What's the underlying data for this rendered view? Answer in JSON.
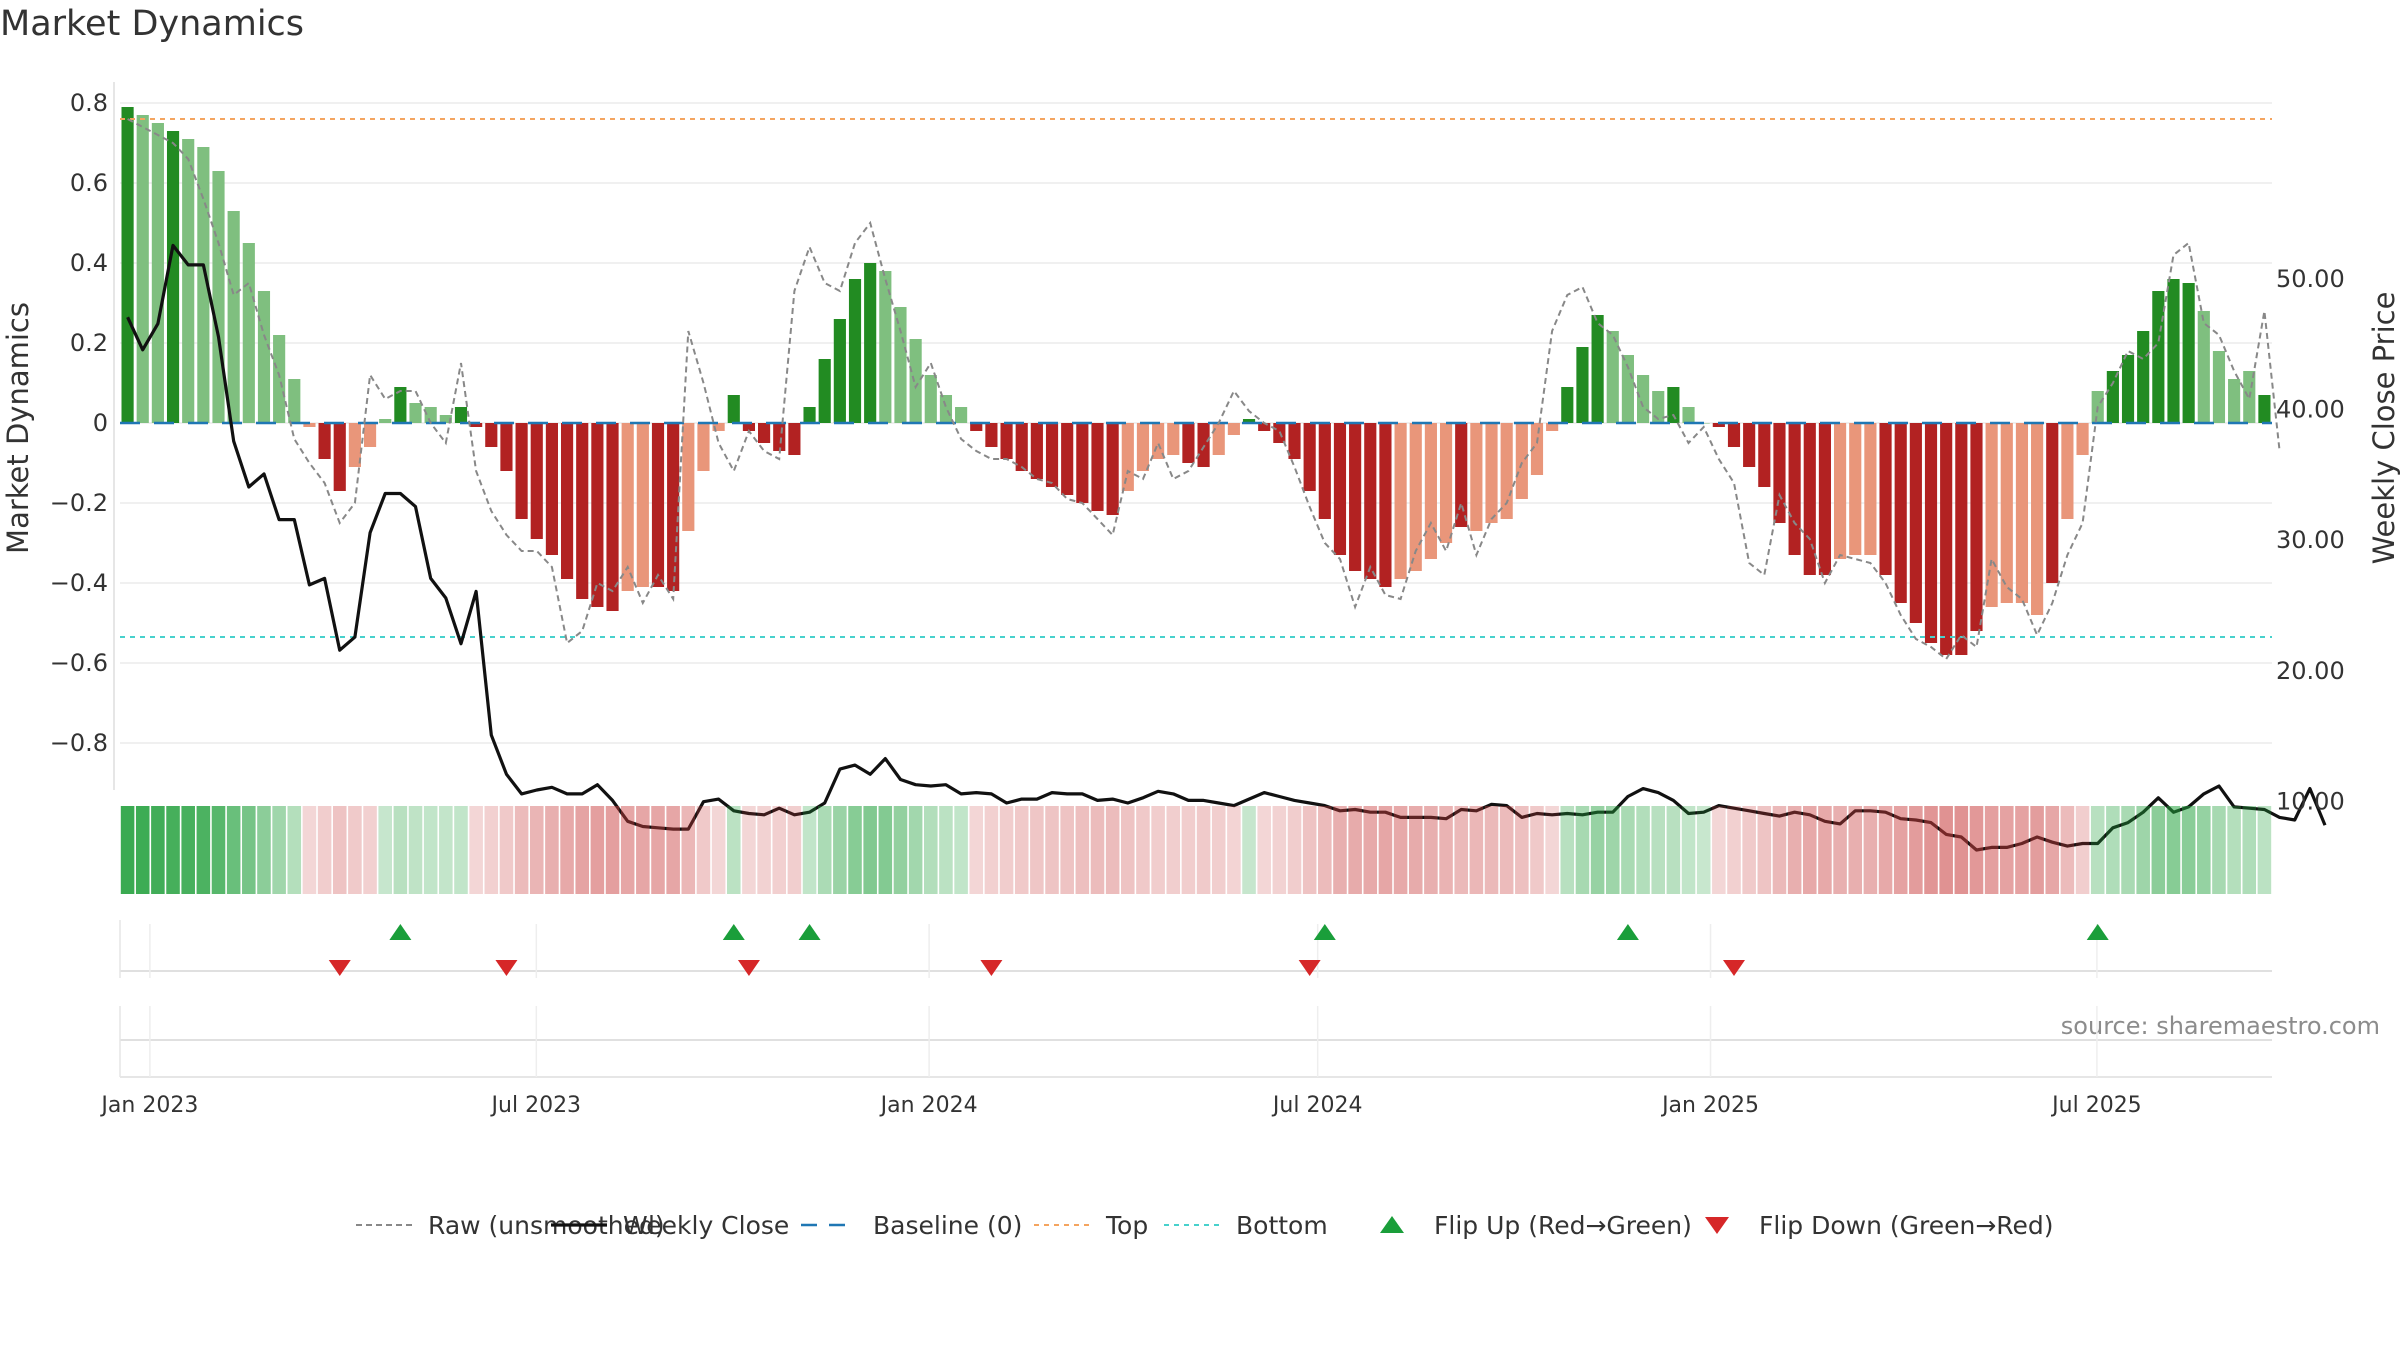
{
  "chart_data": {
    "type": "bar",
    "title": "Market Dynamics",
    "source": "source: sharemaestro.com",
    "ylabel_left": "Market Dynamics",
    "ylabel_right": "Weekly Close Price",
    "ylim_left": [
      -0.9,
      0.8
    ],
    "ylim_right": [
      0,
      55
    ],
    "y_ticks_left": [
      "0.8",
      "0.6",
      "0.4",
      "0.2",
      "0",
      "−0.2",
      "−0.4",
      "−0.6",
      "−0.8"
    ],
    "y_ticks_right": [
      "50.00",
      "40.00",
      "30.00",
      "20.00",
      "10.00"
    ],
    "x_ticks": [
      "Jan 2023",
      "Jul 2023",
      "Jan 2024",
      "Jul 2024",
      "Jan 2025",
      "Jul 2025"
    ],
    "x_tick_dates": [
      "2023-01-01",
      "2023-07-01",
      "2024-01-01",
      "2024-07-01",
      "2025-01-01",
      "2025-07-01"
    ],
    "date_range": [
      "2022-12-18",
      "2025-09-21"
    ],
    "top_line": 0.76,
    "bottom_line": -0.535,
    "baseline": 0,
    "grid": true,
    "legend_position": "bottom",
    "legend": [
      "Raw (unsmoothed)",
      "Weekly Close",
      "Baseline (0)",
      "Top",
      "Bottom",
      "Flip Up (Red→Green)",
      "Flip Down (Green→Red)"
    ],
    "colors": {
      "strong_green": "#228b22",
      "light_green": "#7fbf7f",
      "strong_red": "#b22222",
      "light_red": "#e9967a",
      "close": "#111111",
      "raw": "#888888",
      "baseline": "#1f77b4",
      "top": "#f4a460",
      "bottom": "#48d1cc",
      "flip_up": "#1a9e3a",
      "flip_down": "#d62728"
    },
    "bars": [
      0.79,
      0.77,
      0.75,
      0.73,
      0.71,
      0.69,
      0.63,
      0.53,
      0.45,
      0.33,
      0.22,
      0.11,
      -0.01,
      -0.09,
      -0.17,
      -0.11,
      -0.06,
      0.01,
      0.09,
      0.05,
      0.04,
      0.02,
      0.04,
      -0.01,
      -0.06,
      -0.12,
      -0.24,
      -0.29,
      -0.33,
      -0.39,
      -0.44,
      -0.46,
      -0.47,
      -0.42,
      -0.41,
      -0.41,
      -0.42,
      -0.27,
      -0.12,
      -0.02,
      0.07,
      -0.02,
      -0.05,
      -0.07,
      -0.08,
      0.04,
      0.16,
      0.26,
      0.36,
      0.4,
      0.38,
      0.29,
      0.21,
      0.12,
      0.07,
      0.04,
      -0.02,
      -0.06,
      -0.09,
      -0.12,
      -0.14,
      -0.16,
      -0.18,
      -0.2,
      -0.22,
      -0.23,
      -0.17,
      -0.12,
      -0.09,
      -0.08,
      -0.1,
      -0.11,
      -0.08,
      -0.03,
      0.01,
      -0.02,
      -0.05,
      -0.09,
      -0.17,
      -0.24,
      -0.33,
      -0.37,
      -0.39,
      -0.41,
      -0.39,
      -0.37,
      -0.34,
      -0.3,
      -0.26,
      -0.27,
      -0.25,
      -0.24,
      -0.19,
      -0.13,
      -0.02,
      0.09,
      0.19,
      0.27,
      0.23,
      0.17,
      0.12,
      0.08,
      0.09,
      0.04,
      0.0,
      -0.01,
      -0.06,
      -0.11,
      -0.16,
      -0.25,
      -0.33,
      -0.38,
      -0.38,
      -0.34,
      -0.33,
      -0.33,
      -0.38,
      -0.45,
      -0.5,
      -0.55,
      -0.58,
      -0.58,
      -0.52,
      -0.46,
      -0.45,
      -0.45,
      -0.48,
      -0.4,
      -0.24,
      -0.08,
      0.08,
      0.13,
      0.17,
      0.23,
      0.33,
      0.36,
      0.35,
      0.28,
      0.18,
      0.11,
      0.13,
      0.07
    ],
    "bar_strength": [
      1,
      0,
      0,
      1,
      0,
      0,
      0,
      0,
      0,
      0,
      0,
      0,
      0,
      1,
      1,
      0,
      0,
      0,
      1,
      0,
      0,
      0,
      1,
      1,
      1,
      1,
      1,
      1,
      1,
      1,
      1,
      1,
      1,
      0,
      0,
      1,
      1,
      0,
      0,
      0,
      1,
      1,
      1,
      1,
      1,
      1,
      1,
      1,
      1,
      1,
      0,
      0,
      0,
      0,
      0,
      0,
      1,
      1,
      1,
      1,
      1,
      1,
      1,
      1,
      1,
      1,
      0,
      0,
      0,
      0,
      1,
      1,
      0,
      0,
      1,
      1,
      1,
      1,
      1,
      1,
      1,
      1,
      1,
      1,
      0,
      0,
      0,
      0,
      1,
      0,
      0,
      0,
      0,
      0,
      0,
      1,
      1,
      1,
      0,
      0,
      0,
      0,
      1,
      0,
      0,
      1,
      1,
      1,
      1,
      1,
      1,
      1,
      1,
      0,
      0,
      0,
      1,
      1,
      1,
      1,
      1,
      1,
      1,
      0,
      0,
      0,
      0,
      1,
      0,
      0,
      0,
      1,
      1,
      1,
      1,
      1,
      1,
      0,
      0,
      0,
      0,
      1,
      0
    ],
    "raw": [
      0.76,
      0.74,
      0.72,
      0.7,
      0.66,
      0.56,
      0.45,
      0.32,
      0.35,
      0.22,
      0.12,
      -0.04,
      -0.1,
      -0.15,
      -0.25,
      -0.2,
      0.12,
      0.06,
      0.08,
      0.08,
      0.0,
      -0.05,
      0.15,
      -0.12,
      -0.22,
      -0.28,
      -0.32,
      -0.32,
      -0.36,
      -0.55,
      -0.52,
      -0.4,
      -0.42,
      -0.36,
      -0.45,
      -0.38,
      -0.44,
      0.23,
      0.1,
      -0.05,
      -0.12,
      -0.02,
      -0.07,
      -0.09,
      0.33,
      0.44,
      0.35,
      0.33,
      0.45,
      0.5,
      0.36,
      0.23,
      0.09,
      0.15,
      0.04,
      -0.04,
      -0.07,
      -0.09,
      -0.09,
      -0.11,
      -0.14,
      -0.15,
      -0.19,
      -0.2,
      -0.24,
      -0.28,
      -0.12,
      -0.14,
      -0.05,
      -0.14,
      -0.12,
      -0.06,
      0.0,
      0.08,
      0.03,
      0.0,
      -0.02,
      -0.11,
      -0.21,
      -0.3,
      -0.34,
      -0.46,
      -0.36,
      -0.43,
      -0.44,
      -0.32,
      -0.25,
      -0.32,
      -0.2,
      -0.33,
      -0.24,
      -0.2,
      -0.1,
      -0.05,
      0.23,
      0.32,
      0.34,
      0.25,
      0.22,
      0.14,
      0.04,
      0.01,
      0.02,
      -0.05,
      -0.01,
      -0.09,
      -0.15,
      -0.35,
      -0.38,
      -0.18,
      -0.25,
      -0.29,
      -0.4,
      -0.33,
      -0.34,
      -0.35,
      -0.4,
      -0.48,
      -0.54,
      -0.56,
      -0.59,
      -0.53,
      -0.56,
      -0.34,
      -0.41,
      -0.44,
      -0.53,
      -0.45,
      -0.33,
      -0.25,
      0.04,
      0.1,
      0.18,
      0.16,
      0.2,
      0.42,
      0.45,
      0.25,
      0.22,
      0.13,
      0.06,
      0.28,
      -0.07
    ],
    "close": [
      47,
      44.5,
      46.5,
      52.5,
      51,
      51,
      45.5,
      37.5,
      34,
      35,
      31.5,
      31.5,
      26.5,
      27,
      21.5,
      22.5,
      30.5,
      33.5,
      33.5,
      32.5,
      27,
      25.5,
      22,
      26,
      15,
      12,
      10.5,
      10.8,
      11,
      10.5,
      10.5,
      11.2,
      10,
      8.4,
      8,
      7.9,
      7.8,
      7.8,
      9.9,
      10.1,
      9.2,
      9,
      8.9,
      9.4,
      8.9,
      9.1,
      9.8,
      12.4,
      12.7,
      12,
      13.2,
      11.6,
      11.2,
      11.1,
      11.2,
      10.5,
      10.6,
      10.5,
      9.8,
      10.1,
      10.1,
      10.6,
      10.5,
      10.5,
      10,
      10.1,
      9.8,
      10.2,
      10.7,
      10.5,
      10,
      10,
      9.8,
      9.6,
      10.1,
      10.6,
      10.3,
      10,
      9.8,
      9.6,
      9.2,
      9.3,
      9.1,
      9.1,
      8.7,
      8.7,
      8.7,
      8.6,
      9.3,
      9.2,
      9.7,
      9.6,
      8.7,
      9,
      8.9,
      9,
      8.9,
      9.1,
      9.1,
      10.3,
      10.9,
      10.6,
      10,
      9,
      9.1,
      9.6,
      9.4,
      9.2,
      9,
      8.8,
      9.1,
      8.9,
      8.4,
      8.2,
      9.2,
      9.2,
      9.1,
      8.6,
      8.5,
      8.3,
      7.4,
      7.2,
      6.2,
      6.4,
      6.4,
      6.7,
      7.2,
      6.8,
      6.5,
      6.7,
      6.7,
      7.9,
      8.3,
      9.1,
      10.2,
      9.1,
      9.5,
      10.5,
      11.1,
      9.5,
      9.4,
      9.3,
      8.7,
      8.5,
      10.9,
      8.1
    ],
    "flip_up_weeks": [
      18,
      40,
      45,
      79,
      99,
      130
    ],
    "flip_down_weeks": [
      14,
      25,
      41,
      57,
      78,
      106
    ]
  }
}
